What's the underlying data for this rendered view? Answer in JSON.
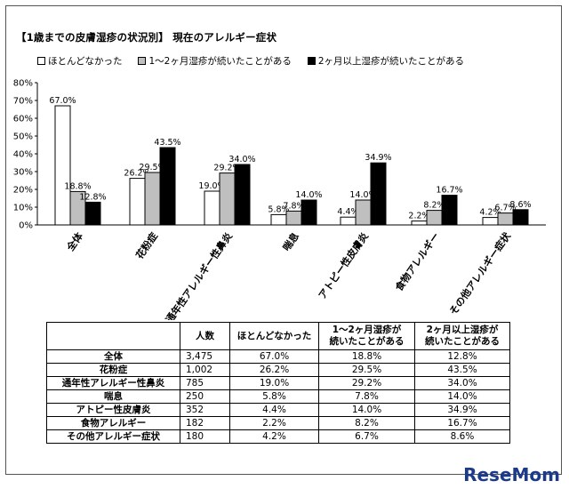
{
  "title": "【1歳までの皮膚湿疹の状況別】 現在のアレルギー症状",
  "legend": [
    {
      "label": "ほとんどなかった",
      "color": "#ffffff"
    },
    {
      "label": "1～2ヶ月湿疹が続いたことがある",
      "color": "#bfbfbf"
    },
    {
      "label": "2ヶ月以上湿疹が続いたことがある",
      "color": "#000000"
    }
  ],
  "chart_data": {
    "type": "bar",
    "categories": [
      "全体",
      "花粉症",
      "通年性アレルギー性鼻炎",
      "喘息",
      "アトピー性皮膚炎",
      "食物アレルギー",
      "その他アレルギー症状"
    ],
    "series": [
      {
        "name": "ほとんどなかった",
        "values": [
          67.0,
          26.2,
          19.0,
          5.8,
          4.4,
          2.2,
          4.2
        ],
        "labels": [
          "67.0%",
          "26.2%",
          "19.0%",
          "5.8%",
          "4.4%",
          "2.2%",
          "4.2%"
        ],
        "color": "#ffffff"
      },
      {
        "name": "1～2ヶ月湿疹が続いたことがある",
        "values": [
          18.8,
          29.5,
          29.2,
          7.8,
          14.0,
          8.2,
          6.7
        ],
        "labels": [
          "18.8%",
          "29.5%",
          "29.2%",
          "7.8%",
          "14.0%",
          "8.2%",
          "6.7%"
        ],
        "color": "#bfbfbf"
      },
      {
        "name": "2ヶ月以上湿疹が続いたことがある",
        "values": [
          12.8,
          43.5,
          34.0,
          14.0,
          34.9,
          16.7,
          8.6
        ],
        "labels": [
          "12.8%",
          "43.5%",
          "34.0%",
          "14.0%",
          "34.9%",
          "16.7%",
          "8.6%"
        ],
        "color": "#000000"
      }
    ],
    "yticks": [
      "0%",
      "10%",
      "20%",
      "30%",
      "40%",
      "50%",
      "60%",
      "70%",
      "80%"
    ],
    "ylim": [
      0,
      80
    ],
    "grid": false
  },
  "table": {
    "headers": [
      "",
      "人数",
      "ほとんどなかった",
      "1～2ヶ月湿疹が\n続いたことがある",
      "2ヶ月以上湿疹が\n続いたことがある"
    ],
    "rows": [
      [
        "全体",
        "3,475",
        "67.0%",
        "18.8%",
        "12.8%"
      ],
      [
        "花粉症",
        "1,002",
        "26.2%",
        "29.5%",
        "43.5%"
      ],
      [
        "通年性アレルギー性鼻炎",
        "785",
        "19.0%",
        "29.2%",
        "34.0%"
      ],
      [
        "喘息",
        "250",
        "5.8%",
        "7.8%",
        "14.0%"
      ],
      [
        "アトピー性皮膚炎",
        "352",
        "4.4%",
        "14.0%",
        "34.9%"
      ],
      [
        "食物アレルギー",
        "182",
        "2.2%",
        "8.2%",
        "16.7%"
      ],
      [
        "その他アレルギー症状",
        "180",
        "4.2%",
        "6.7%",
        "8.6%"
      ]
    ]
  },
  "watermark": "ReseMom"
}
